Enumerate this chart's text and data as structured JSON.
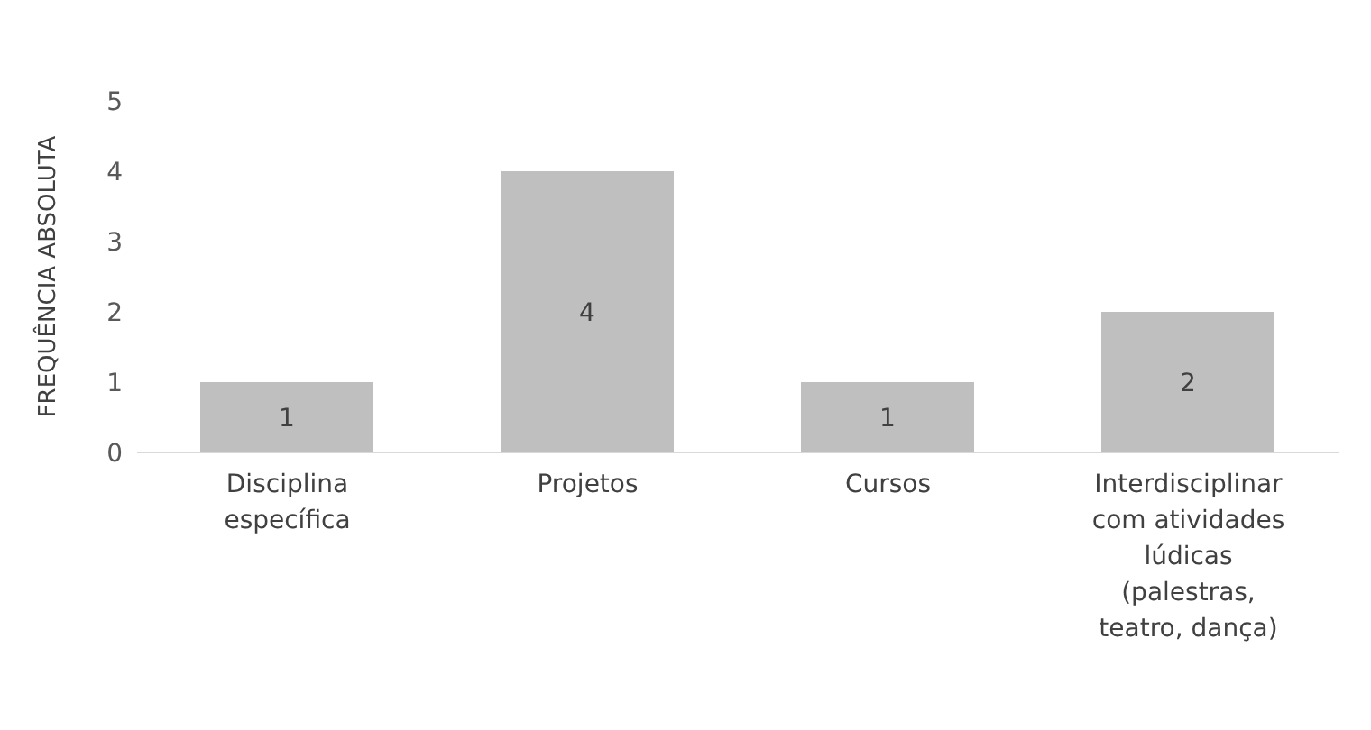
{
  "chart_data": {
    "type": "bar",
    "ylabel": "FREQUÊNCIA ABSOLUTA",
    "categories": [
      "Disciplina específica",
      "Projetos",
      "Cursos",
      "Interdisciplinar com atividades lúdicas (palestras, teatro, dança)"
    ],
    "values": [
      1,
      4,
      1,
      2
    ],
    "color": "#bfbfbf",
    "ylim": [
      0,
      5
    ],
    "yticks": [
      0,
      1,
      2,
      3,
      4,
      5
    ],
    "grid": false,
    "data_labels": true,
    "legend": false
  }
}
